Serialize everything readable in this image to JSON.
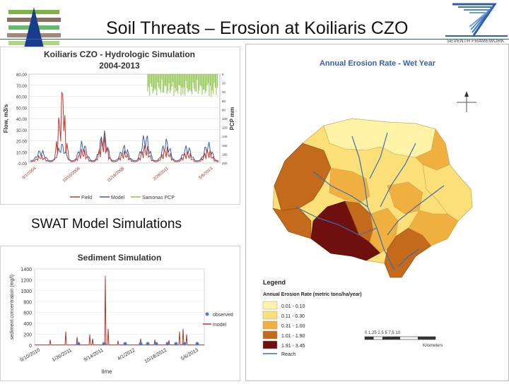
{
  "slide": {
    "title": "Soil Threats – Erosion at Koiliaris CZO",
    "subtitle": "SWAT Model Simulations",
    "fp7_text": "SEVENTH FRAMEWORK"
  },
  "hydro_chart": {
    "title_line1": "Koiliaris CZO - Hydrologic Simulation",
    "title_line2": "2004-2013",
    "ylabel": "Flow, m3/s",
    "y2label": "PCP mm",
    "yticks": [
      "80.00",
      "70.00",
      "60.00",
      "50.00",
      "40.00",
      "30.00",
      "20.00",
      "10.00",
      "0.00"
    ],
    "y2ticks": [
      "0",
      "20",
      "40",
      "60",
      "80",
      "100",
      "120",
      "140",
      "160",
      "180",
      "200"
    ],
    "xticks": [
      "9/1/2004",
      "10/10/2006",
      "11/18/2008",
      "2/26/2011",
      "5/6/2013"
    ],
    "legend": [
      "Field",
      "Model",
      "Samonas PCP"
    ],
    "colors": {
      "field": "#c0392b",
      "model": "#3a5fa8",
      "pcp": "#8bc34a"
    }
  },
  "sediment_chart": {
    "title": "Sediment Simulation",
    "ylabel": "sediment concentration (mg/l)",
    "xlabel": "time",
    "yticks": [
      "1400",
      "1200",
      "1000",
      "800",
      "600",
      "400",
      "200",
      "0"
    ],
    "xticks": [
      "9/10/2010",
      "1/26/2011",
      "9/14/2011",
      "4/1/2012",
      "10/18/2012",
      "5/6/2013"
    ],
    "legend": [
      "observed",
      "model"
    ],
    "colors": {
      "observed": "#4a7fc1",
      "model": "#b03a2e"
    }
  },
  "map": {
    "title": "Annual Erosion Rate - Wet Year",
    "legend_title": "Legend",
    "legend_subtitle": "Annual Erosion Rate (metric tons/ha/year)",
    "classes": [
      {
        "label": "0.01 - 0.10",
        "color": "#fff3a8"
      },
      {
        "label": "0.11 - 0.30",
        "color": "#fbe07a"
      },
      {
        "label": "0.31 - 1.00",
        "color": "#f0b040"
      },
      {
        "label": "1.01 - 1.90",
        "color": "#c46a1c"
      },
      {
        "label": "1.91 - 3.45",
        "color": "#6e1010"
      }
    ],
    "reach_label": "Reach",
    "reach_color": "#3b6fb0",
    "scale_label": "0 1.25 2.5 5 7.5 10",
    "scale_units": "Kilometers"
  },
  "chart_data": [
    {
      "type": "line",
      "title": "Koiliaris CZO - Hydrologic Simulation 2004-2013",
      "xlabel": "",
      "ylabel": "Flow, m3/s",
      "ylim": [
        0,
        80
      ],
      "y2label": "PCP mm",
      "y2lim": [
        0,
        200
      ],
      "x": [
        "9/1/2004",
        "10/10/2006",
        "11/18/2008",
        "2/26/2011",
        "5/6/2013"
      ],
      "series": [
        {
          "name": "Field",
          "values": [
            2,
            62,
            12,
            10,
            2
          ]
        },
        {
          "name": "Model",
          "values": [
            3,
            50,
            20,
            15,
            15
          ]
        },
        {
          "name": "Samonas PCP",
          "values": [
            0,
            0,
            0,
            120,
            90
          ]
        }
      ]
    },
    {
      "type": "line",
      "title": "Sediment Simulation",
      "xlabel": "time",
      "ylabel": "sediment concentration (mg/l)",
      "ylim": [
        0,
        1400
      ],
      "x": [
        "9/10/2010",
        "1/26/2011",
        "9/14/2011",
        "4/1/2012",
        "10/18/2012",
        "5/6/2013"
      ],
      "series": [
        {
          "name": "observed",
          "values": [
            0,
            0,
            0,
            0,
            0,
            0
          ]
        },
        {
          "name": "model",
          "values": [
            10,
            250,
            150,
            1270,
            100,
            250
          ]
        }
      ]
    }
  ]
}
